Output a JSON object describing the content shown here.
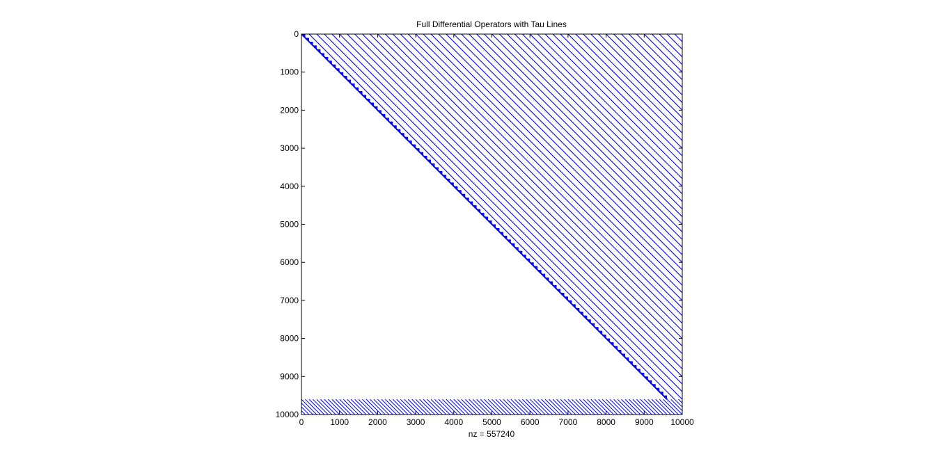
{
  "chart_data": {
    "type": "spy",
    "title": "Full Differential Operators with Tau Lines",
    "xlabel": "nz = 557240",
    "ylabel": "",
    "xlim": [
      0,
      10000
    ],
    "ylim": [
      0,
      10000
    ],
    "y_reversed": true,
    "x_ticks": [
      0,
      1000,
      2000,
      3000,
      4000,
      5000,
      6000,
      7000,
      8000,
      9000,
      10000
    ],
    "y_ticks": [
      0,
      1000,
      2000,
      3000,
      4000,
      5000,
      6000,
      7000,
      8000,
      9000,
      10000
    ],
    "grid": false,
    "nz": 557240,
    "structure": {
      "matrix_size": 10000,
      "operator_rows": 9600,
      "diagonal_block_size": 100,
      "upper_diagonal_offsets": [
        200,
        400,
        600,
        800,
        1000,
        1200,
        1400,
        1600,
        1800,
        2000,
        2200,
        2400,
        2600,
        2800,
        3000,
        3200,
        3400,
        3600,
        3800,
        4000,
        4200,
        4400,
        4600,
        4800,
        5000,
        5200,
        5400,
        5600,
        5800,
        6000,
        6200,
        6400,
        6600,
        6800,
        7000,
        7200,
        7400,
        7600,
        7800,
        8000,
        8200,
        8400,
        8600,
        8800,
        9000,
        9200,
        9400,
        9600,
        9800
      ],
      "tau_rows": [
        9600,
        10000
      ],
      "tau_line_spacing": 100
    },
    "colors": {
      "marker": "#0000ff",
      "axes": "#000000",
      "background": "#ffffff"
    }
  }
}
